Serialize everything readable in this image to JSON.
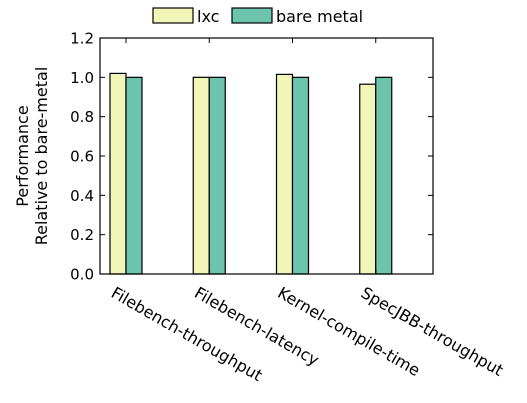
{
  "chart_data": {
    "type": "bar",
    "categories": [
      "Filebench-throughput",
      "Filebench-latency",
      "Kernel-compile-time",
      "SpecJBB-throughput"
    ],
    "series": [
      {
        "name": "lxc",
        "values": [
          1.02,
          1.0,
          1.015,
          0.965
        ],
        "color": "#f2f5b8"
      },
      {
        "name": "bare metal",
        "values": [
          1.0,
          1.0,
          1.0,
          1.0
        ],
        "color": "#6cc4ac"
      }
    ],
    "ylabel": "Performance\nRelative to bare-metal",
    "xlabel": "",
    "ylim": [
      0.0,
      1.2
    ],
    "yticks": [
      "0.0",
      "0.2",
      "0.4",
      "0.6",
      "0.8",
      "1.0",
      "1.2"
    ],
    "legend_position": "top-center",
    "grid": false
  }
}
